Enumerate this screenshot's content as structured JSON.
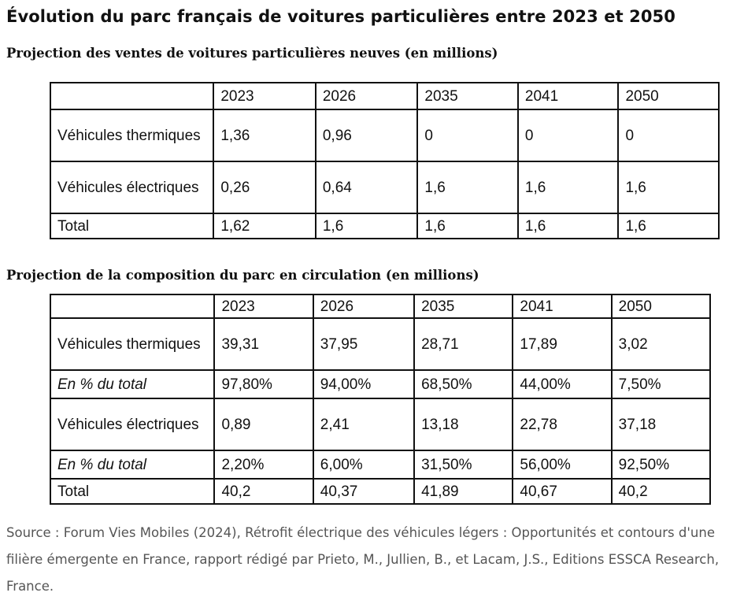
{
  "title": "Évolution du parc français de voitures particulières entre 2023 et 2050",
  "table1": {
    "caption": "Projection des ventes de voitures particulières neuves (en millions)",
    "headers": [
      "",
      "2023",
      "2026",
      "2035",
      "2041",
      "2050"
    ],
    "rows": [
      {
        "label": "Véhicules thermiques",
        "values": [
          "1,36",
          "0,96",
          "0",
          "0",
          "0"
        ]
      },
      {
        "label": "Véhicules électriques",
        "values": [
          "0,26",
          "0,64",
          "1,6",
          "1,6",
          "1,6"
        ]
      },
      {
        "label": "Total",
        "values": [
          "1,62",
          "1,6",
          "1,6",
          "1,6",
          "1,6"
        ]
      }
    ]
  },
  "table2": {
    "caption": "Projection de la composition du parc en circulation (en millions)",
    "headers": [
      "",
      "2023",
      "2026",
      "2035",
      "2041",
      "2050"
    ],
    "rows": [
      {
        "label": "Véhicules thermiques",
        "values": [
          "39,31",
          "37,95",
          "28,71",
          "17,89",
          "3,02"
        ]
      },
      {
        "label": "En % du total",
        "values": [
          "97,80%",
          "94,00%",
          "68,50%",
          "44,00%",
          "7,50%"
        ]
      },
      {
        "label": "Véhicules électriques",
        "values": [
          "0,89",
          "2,41",
          "13,18",
          "22,78",
          "37,18"
        ]
      },
      {
        "label": "En % du total",
        "values": [
          "2,20%",
          "6,00%",
          "31,50%",
          "56,00%",
          "92,50%"
        ]
      },
      {
        "label": "Total",
        "values": [
          "40,2",
          "40,37",
          "41,89",
          "40,67",
          "40,2"
        ]
      }
    ]
  },
  "source": "Source : Forum Vies Mobiles (2024), Rétrofit électrique des véhicules légers : Opportunités et contours d'une filière émergente en France, rapport rédigé par Prieto, M., Jullien, B., et Lacam, J.S., Editions ESSCA Research, France."
}
